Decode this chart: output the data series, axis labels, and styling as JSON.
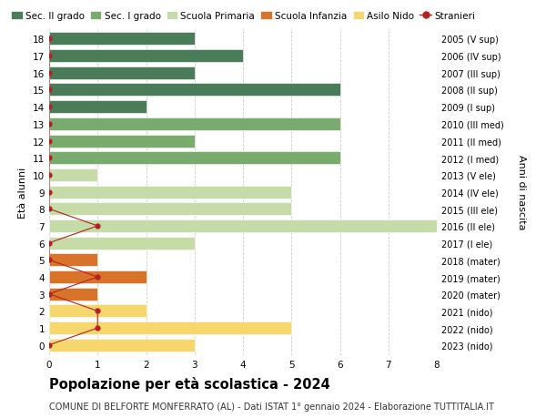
{
  "title": "Popolazione per età scolastica - 2024",
  "subtitle": "COMUNE DI BELFORTE MONFERRATO (AL) - Dati ISTAT 1° gennaio 2024 - Elaborazione TUTTITALIA.IT",
  "ylabel_left": "Età alunni",
  "ylabel_right": "Anni di nascita",
  "xlim": [
    0,
    8
  ],
  "xticks": [
    0,
    1,
    2,
    3,
    4,
    5,
    6,
    7,
    8
  ],
  "ages": [
    18,
    17,
    16,
    15,
    14,
    13,
    12,
    11,
    10,
    9,
    8,
    7,
    6,
    5,
    4,
    3,
    2,
    1,
    0
  ],
  "right_labels": [
    "2005 (V sup)",
    "2006 (IV sup)",
    "2007 (III sup)",
    "2008 (II sup)",
    "2009 (I sup)",
    "2010 (III med)",
    "2011 (II med)",
    "2012 (I med)",
    "2013 (V ele)",
    "2014 (IV ele)",
    "2015 (III ele)",
    "2016 (II ele)",
    "2017 (I ele)",
    "2018 (mater)",
    "2019 (mater)",
    "2020 (mater)",
    "2021 (nido)",
    "2022 (nido)",
    "2023 (nido)"
  ],
  "bar_values": [
    3,
    4,
    3,
    6,
    2,
    6,
    3,
    6,
    1,
    5,
    5,
    8,
    3,
    1,
    2,
    1,
    2,
    5,
    3
  ],
  "bar_colors": [
    "#4a7c59",
    "#4a7c59",
    "#4a7c59",
    "#4a7c59",
    "#4a7c59",
    "#7aab6e",
    "#7aab6e",
    "#7aab6e",
    "#c5dba8",
    "#c5dba8",
    "#c5dba8",
    "#c5dba8",
    "#c5dba8",
    "#d9732a",
    "#d9732a",
    "#d9732a",
    "#f5d76e",
    "#f5d76e",
    "#f5d76e"
  ],
  "stranieri_values": [
    0,
    0,
    0,
    0,
    0,
    0,
    0,
    0,
    0,
    0,
    0,
    1,
    0,
    0,
    1,
    0,
    1,
    1,
    0
  ],
  "stranieri_color": "#b22222",
  "legend_items": [
    {
      "label": "Sec. II grado",
      "color": "#4a7c59"
    },
    {
      "label": "Sec. I grado",
      "color": "#7aab6e"
    },
    {
      "label": "Scuola Primaria",
      "color": "#c5dba8"
    },
    {
      "label": "Scuola Infanzia",
      "color": "#d9732a"
    },
    {
      "label": "Asilo Nido",
      "color": "#f5d76e"
    },
    {
      "label": "Stranieri",
      "color": "#b22222"
    }
  ],
  "background_color": "#ffffff",
  "grid_color": "#cccccc",
  "bar_height": 0.75,
  "title_fontsize": 10.5,
  "subtitle_fontsize": 7,
  "axis_fontsize": 8,
  "tick_fontsize": 7.5,
  "legend_fontsize": 7.5
}
